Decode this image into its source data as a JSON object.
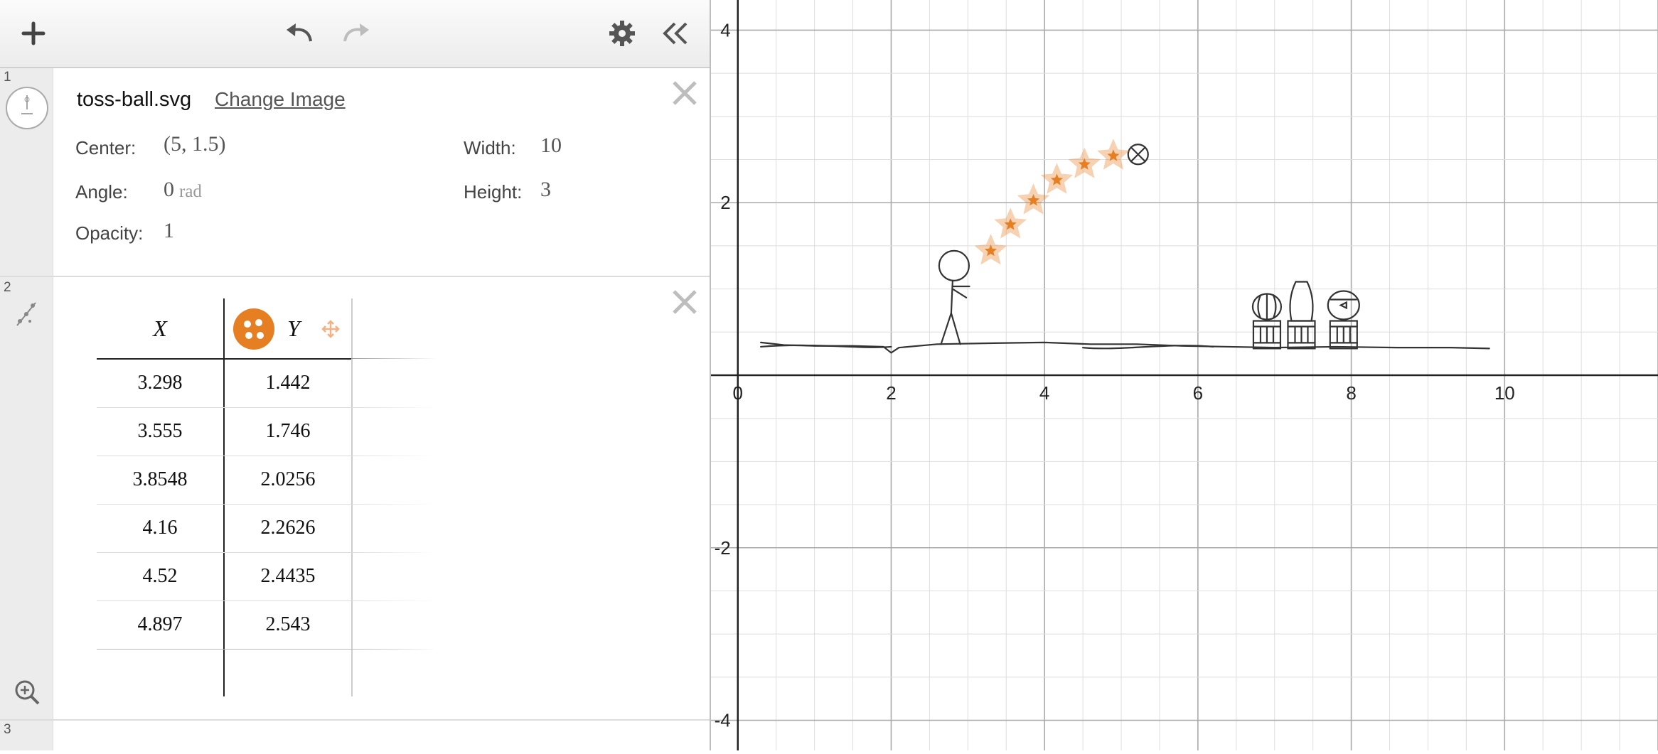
{
  "toolbar": {
    "add_icon": "plus-icon",
    "undo_icon": "undo-icon",
    "redo_icon": "redo-icon",
    "settings_icon": "gear-icon",
    "collapse_icon": "double-chevron-left-icon"
  },
  "expressions": [
    {
      "index": "1",
      "type": "image",
      "filename": "toss-ball.svg",
      "change_label": "Change Image",
      "center_label": "Center:",
      "center_value": "(5, 1.5)",
      "width_label": "Width:",
      "width_value": "10",
      "angle_label": "Angle:",
      "angle_value": "0",
      "angle_unit": "rad",
      "height_label": "Height:",
      "height_value": "3",
      "opacity_label": "Opacity:",
      "opacity_value": "1"
    },
    {
      "index": "2",
      "type": "table",
      "columns": [
        "X",
        "Y"
      ],
      "point_color": "#e67e22",
      "rows": [
        [
          "3.298",
          "1.442"
        ],
        [
          "3.555",
          "1.746"
        ],
        [
          "3.8548",
          "2.0256"
        ],
        [
          "4.16",
          "2.2626"
        ],
        [
          "4.52",
          "2.4435"
        ],
        [
          "4.897",
          "2.543"
        ]
      ]
    },
    {
      "index": "3",
      "type": "empty"
    }
  ],
  "zoom_icon": "zoom-in-icon",
  "chart_data": {
    "type": "scatter",
    "title": "",
    "xlabel": "",
    "ylabel": "",
    "xlim": [
      -0.35,
      12.0
    ],
    "ylim": [
      -4.35,
      4.35
    ],
    "x_ticks": [
      "0",
      "2",
      "4",
      "6",
      "8",
      "10"
    ],
    "y_ticks": [
      "4",
      "2",
      "-2",
      "-4"
    ],
    "grid": true,
    "series": [
      {
        "x": [
          3.298,
          3.555,
          3.8548,
          4.16,
          4.52,
          4.897
        ],
        "y": [
          1.442,
          1.746,
          2.0256,
          2.2626,
          2.4435,
          2.543
        ],
        "marker": "star",
        "color": "#e67e22"
      }
    ],
    "image": {
      "name": "toss-ball.svg",
      "center": [
        5,
        1.5
      ],
      "width": 10,
      "height": 3
    }
  }
}
